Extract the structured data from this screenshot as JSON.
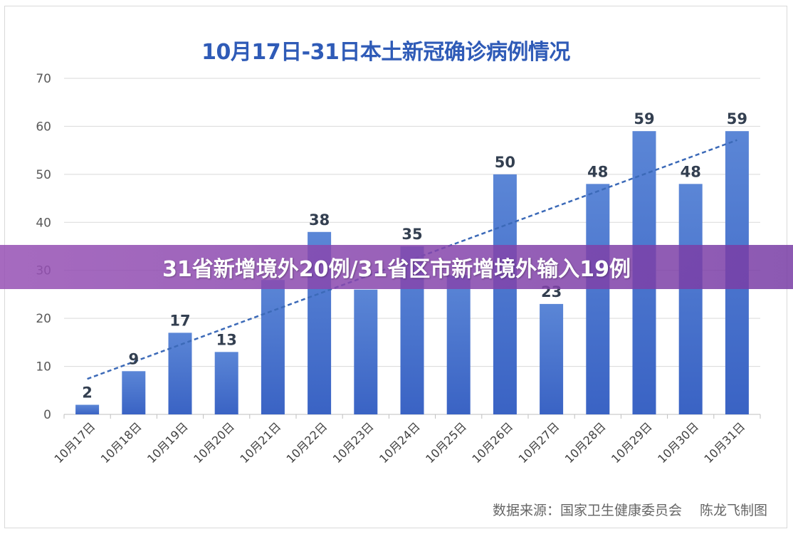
{
  "banner": {
    "text": "31省新增境外20例/31省区市新增境外输入19例"
  },
  "credit": {
    "text": "数据来源：国家卫生健康委员会　 陈龙飞制图"
  },
  "chart_data": {
    "type": "bar",
    "title": "10月17日-31日本土新冠确诊病例情况",
    "categories": [
      "10月17日",
      "10月18日",
      "10月19日",
      "10月20日",
      "10月21日",
      "10月22日",
      "10月23日",
      "10月24日",
      "10月25日",
      "10月26日",
      "10月27日",
      "10月28日",
      "10月29日",
      "10月30日",
      "10月31日"
    ],
    "values": [
      2,
      9,
      17,
      13,
      28,
      38,
      26,
      35,
      29,
      50,
      23,
      48,
      59,
      48,
      59
    ],
    "data_labels": [
      "2",
      "9",
      "17",
      "13",
      "",
      "38",
      "",
      "35",
      "",
      "50",
      "23",
      "48",
      "59",
      "48",
      "59"
    ],
    "ylim": [
      0,
      70
    ],
    "yticks": [
      0,
      10,
      20,
      30,
      40,
      50,
      60,
      70
    ],
    "trendline": {
      "type": "linear",
      "style": "dashed"
    },
    "grid": true,
    "colors": {
      "bar_top": "#5b86d6",
      "bar_bottom": "#3a63c4",
      "trend": "#3c6ab8",
      "grid": "#d9d9d9",
      "label": "#333f50",
      "title": "#2f5bb7"
    }
  }
}
